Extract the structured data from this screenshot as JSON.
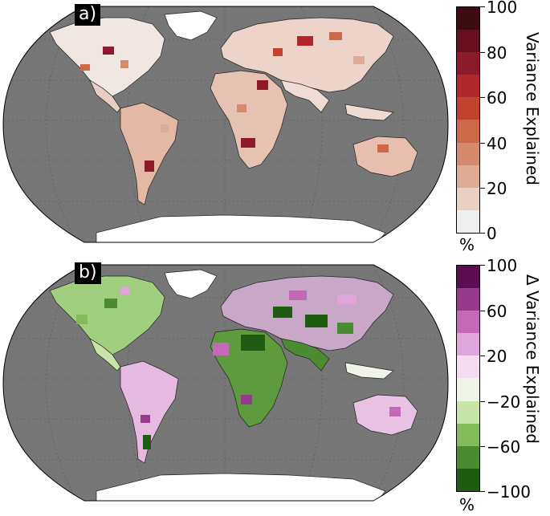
{
  "panels": [
    {
      "label": "a)",
      "colorbar": {
        "title": "Variance Explained",
        "unit": "%",
        "range": [
          0,
          100
        ],
        "ticks": [
          "100",
          "80",
          "60",
          "40",
          "20",
          "0"
        ],
        "colors_top_to_bottom": [
          "#3d0b12",
          "#670f1f",
          "#8d1a2a",
          "#b0282c",
          "#c0422f",
          "#cd6849",
          "#d68a6d",
          "#dfab97",
          "#e8d0c6",
          "#efefef"
        ]
      }
    },
    {
      "label": "b)",
      "colorbar": {
        "title": "Δ Variance Explained",
        "unit": "%",
        "range": [
          -100,
          100
        ],
        "ticks": [
          "100",
          "60",
          "20",
          "−20",
          "−60",
          "−100"
        ],
        "colors_top_to_bottom": [
          "#5a0d52",
          "#97398c",
          "#c469b8",
          "#dfa6da",
          "#f2dcef",
          "#eef5e6",
          "#c8e4a8",
          "#82bb5a",
          "#4b8b31",
          "#1e5c11"
        ]
      }
    }
  ],
  "map_style": {
    "ocean": "#777777",
    "land_no_data": "#ffffff",
    "coastline": "#1a1a1a"
  }
}
